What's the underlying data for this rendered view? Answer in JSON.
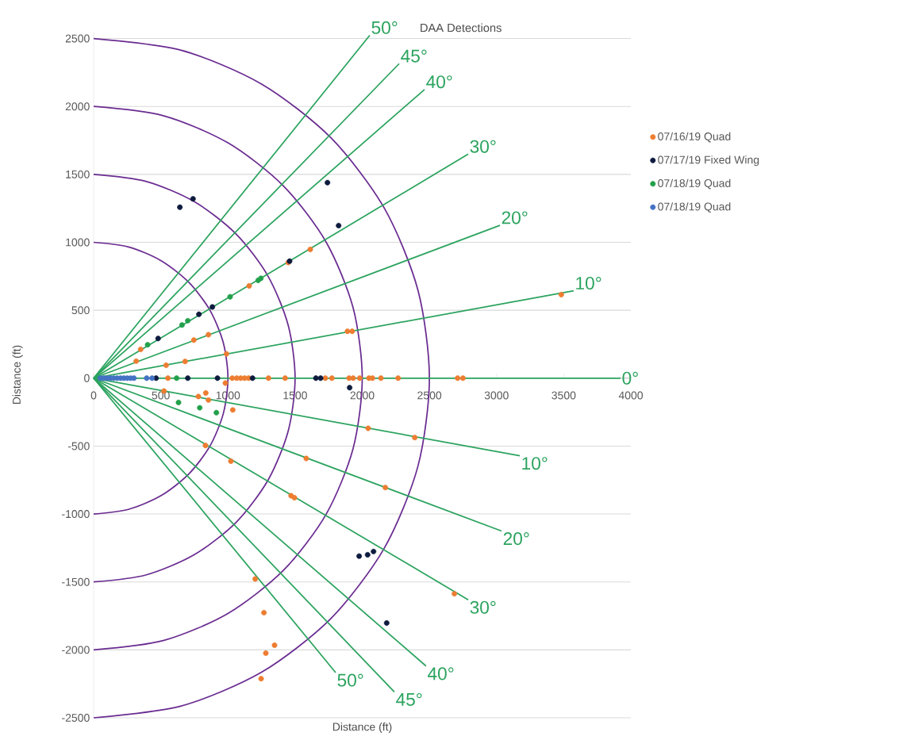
{
  "chart_data": {
    "type": "scatter",
    "title": "DAA Detections",
    "xlabel": "Distance (ft)",
    "ylabel": "Distance (ft)",
    "xlim": [
      0,
      4000
    ],
    "ylim": [
      -2500,
      2550
    ],
    "xticks": [
      0,
      500,
      1000,
      1500,
      2000,
      2500,
      3000,
      3500,
      4000
    ],
    "yticks": [
      -2500,
      -2000,
      -1500,
      -1000,
      -500,
      0,
      500,
      1000,
      1500,
      2000,
      2500
    ],
    "grid": "y",
    "legend": "right",
    "marker": "circle",
    "series": [
      {
        "type": "line",
        "marker": "none",
        "color": "#6a2c91",
        "x": [
          0,
          259,
          500,
          707,
          866,
          966,
          1000,
          966,
          866,
          707,
          500,
          259,
          0
        ],
        "values": [
          1000,
          966,
          866,
          707,
          500,
          259,
          0,
          -259,
          -500,
          -707,
          -866,
          -966,
          -1000
        ]
      },
      {
        "type": "line",
        "marker": "none",
        "color": "#6a2c91",
        "x": [
          0,
          388,
          750,
          1061,
          1299,
          1449,
          1500,
          1449,
          1299,
          1061,
          750,
          388,
          0
        ],
        "values": [
          1500,
          1449,
          1299,
          1061,
          750,
          388,
          0,
          -388,
          -750,
          -1061,
          -1299,
          -1449,
          -1500
        ]
      },
      {
        "type": "line",
        "marker": "none",
        "color": "#6a2c91",
        "x": [
          0,
          518,
          1000,
          1414,
          1732,
          1932,
          2000,
          1932,
          1732,
          1414,
          1000,
          518,
          0
        ],
        "values": [
          2000,
          1932,
          1732,
          1414,
          1000,
          518,
          0,
          -518,
          -1000,
          -1414,
          -1732,
          -1932,
          -2000
        ]
      },
      {
        "type": "line",
        "marker": "none",
        "color": "#6a2c91",
        "x": [
          0,
          647,
          1250,
          1768,
          2165,
          2415,
          2500,
          2415,
          2165,
          1768,
          1250,
          647,
          0
        ],
        "values": [
          2500,
          2415,
          2165,
          1768,
          1250,
          647,
          0,
          -647,
          -1250,
          -1768,
          -2165,
          -2415,
          -2500
        ]
      },
      {
        "type": "line",
        "color": "#2ba35e",
        "marker": "none",
        "x": [
          0,
          2056
        ],
        "values": [
          0,
          2524
        ]
      },
      {
        "type": "line",
        "color": "#2ba35e",
        "marker": "none",
        "x": [
          0,
          2275
        ],
        "values": [
          0,
          2315
        ]
      },
      {
        "type": "line",
        "color": "#2ba35e",
        "marker": "none",
        "x": [
          0,
          2464
        ],
        "values": [
          0,
          2125
        ]
      },
      {
        "type": "line",
        "color": "#2ba35e",
        "marker": "none",
        "x": [
          0,
          2789
        ],
        "values": [
          0,
          1649
        ]
      },
      {
        "type": "line",
        "color": "#2ba35e",
        "marker": "none",
        "x": [
          0,
          3025
        ],
        "values": [
          0,
          1125
        ]
      },
      {
        "type": "line",
        "color": "#2ba35e",
        "marker": "none",
        "x": [
          0,
          3574
        ],
        "values": [
          0,
          643
        ]
      },
      {
        "type": "line",
        "color": "#2ba35e",
        "marker": "none",
        "x": [
          0,
          3923
        ],
        "values": [
          0,
          0
        ]
      },
      {
        "type": "line",
        "color": "#2ba35e",
        "marker": "none",
        "x": [
          0,
          3173
        ],
        "values": [
          0,
          -571
        ]
      },
      {
        "type": "line",
        "color": "#2ba35e",
        "marker": "none",
        "x": [
          0,
          3037
        ],
        "values": [
          0,
          -1125
        ]
      },
      {
        "type": "line",
        "color": "#2ba35e",
        "marker": "none",
        "x": [
          0,
          2789
        ],
        "values": [
          0,
          -1631
        ]
      },
      {
        "type": "line",
        "color": "#2ba35e",
        "marker": "none",
        "x": [
          0,
          2475
        ],
        "values": [
          0,
          -2119
        ]
      },
      {
        "type": "line",
        "color": "#2ba35e",
        "marker": "none",
        "x": [
          0,
          2239
        ],
        "values": [
          0,
          -2309
        ]
      },
      {
        "type": "line",
        "color": "#2ba35e",
        "marker": "none",
        "x": [
          0,
          1802
        ],
        "values": [
          0,
          -2167
        ]
      },
      {
        "name": "07/16/19 Quad",
        "color": "#ed7d31",
        "x": [
          1613,
          1449,
          1158,
          855,
          746,
          350,
          317,
          540,
          681,
          989,
          1890,
          1925,
          3482,
          553,
          1032,
          1065,
          1095,
          1124,
          1154,
          1302,
          1426,
          1725,
          1774,
          1902,
          1932,
          1981,
          2050,
          2076,
          2139,
          2267,
          2710,
          2750,
          981,
          524,
          780,
          835,
          855,
          1036,
          2044,
          2391,
          833,
          1022,
          1583,
          2172,
          1470,
          1495,
          2686,
          1203,
          1268,
          1347,
          1282,
          1247
        ],
        "values": [
          948,
          851,
          679,
          320,
          280,
          212,
          125,
          95,
          123,
          179,
          345,
          345,
          615,
          0,
          0,
          0,
          0,
          0,
          0,
          0,
          0,
          0,
          0,
          0,
          0,
          0,
          0,
          0,
          0,
          0,
          0,
          0,
          -36,
          -95,
          -135,
          -109,
          -161,
          -234,
          -369,
          -437,
          -496,
          -611,
          -591,
          -805,
          -865,
          -880,
          -1587,
          -1478,
          -1726,
          -1966,
          -2024,
          -2212
        ]
      },
      {
        "name": "07/17/19 Fixed Wing",
        "color": "#0d1b3e",
        "x": [
          642,
          740,
          1741,
          1824,
          1459,
          884,
          784,
          480,
          465,
          701,
          922,
          1183,
          1655,
          1690,
          1906,
          1977,
          2040,
          2084,
          2182
        ],
        "values": [
          1258,
          1320,
          1439,
          1123,
          861,
          524,
          470,
          292,
          0,
          0,
          0,
          0,
          0,
          0,
          -70,
          -1310,
          -1300,
          -1276,
          -1802
        ]
      },
      {
        "name": "07/18/19 Quad",
        "color": "#22a04b",
        "x": [
          1225,
          1245,
          1016,
          701,
          658,
          402,
          618,
          632,
          790,
          914
        ],
        "values": [
          720,
          735,
          599,
          423,
          391,
          246,
          0,
          -179,
          -218,
          -254
        ]
      },
      {
        "name": "07/18/19 Quad",
        "color": "#4472c4",
        "x": [
          50,
          75,
          100,
          125,
          150,
          175,
          200,
          225,
          250,
          275,
          300,
          395,
          435
        ],
        "values": [
          0,
          0,
          0,
          0,
          0,
          0,
          0,
          0,
          0,
          0,
          0,
          0,
          0
        ]
      }
    ],
    "annotations": [
      {
        "text": "50°",
        "x": 2056,
        "y": 2524
      },
      {
        "text": "45°",
        "x": 2275,
        "y": 2315
      },
      {
        "text": "40°",
        "x": 2464,
        "y": 2125
      },
      {
        "text": "30°",
        "x": 2789,
        "y": 1649
      },
      {
        "text": "20°",
        "x": 3025,
        "y": 1125
      },
      {
        "text": "10°",
        "x": 3574,
        "y": 643
      },
      {
        "text": "0°",
        "x": 3923,
        "y": 0
      },
      {
        "text": "10°",
        "x": 3173,
        "y": -571
      },
      {
        "text": "20°",
        "x": 3037,
        "y": -1125
      },
      {
        "text": "30°",
        "x": 2789,
        "y": -1631
      },
      {
        "text": "40°",
        "x": 2475,
        "y": -2119
      },
      {
        "text": "45°",
        "x": 2239,
        "y": -2309
      },
      {
        "text": "50°",
        "x": 1802,
        "y": -2167
      }
    ]
  }
}
